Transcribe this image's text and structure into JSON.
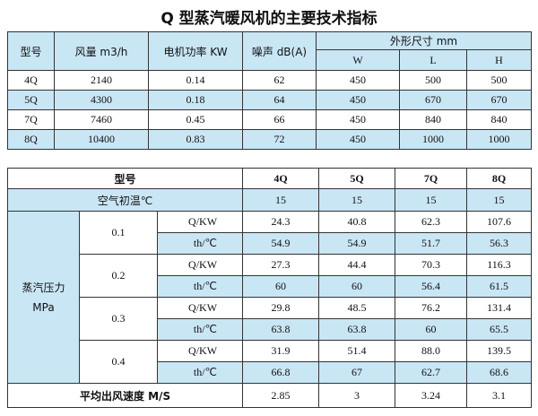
{
  "title": "Q 型蒸汽暖风机的主要技术指标",
  "table1": {
    "header": [
      "型号",
      "风量 m3/h",
      "电机功率 KW",
      "噪声 dB(A)",
      "外形尺寸 mm"
    ],
    "subheader": [
      "W",
      "L",
      "H"
    ],
    "rows": [
      [
        "4Q",
        "2140",
        "0.14",
        "62",
        "450",
        "500",
        "500"
      ],
      [
        "5Q",
        "4300",
        "0.18",
        "64",
        "450",
        "670",
        "670"
      ],
      [
        "7Q",
        "7460",
        "0.45",
        "66",
        "450",
        "840",
        "840"
      ],
      [
        "8Q",
        "10400",
        "0.83",
        "72",
        "450",
        "1000",
        "1000"
      ]
    ]
  },
  "table2": {
    "header": [
      "型号",
      "4Q",
      "5Q",
      "7Q",
      "8Q"
    ],
    "air_temp": {
      "label": "空气初温℃",
      "values": [
        "15",
        "15",
        "15",
        "15"
      ]
    },
    "pressure": {
      "label_lines": [
        "蒸汽压力",
        "MPa"
      ],
      "groups": [
        {
          "pressure": "0.1",
          "rows": [
            {
              "label": "Q/KW",
              "values": [
                "24.3",
                "40.8",
                "62.3",
                "107.6"
              ]
            },
            {
              "label": "th/℃",
              "values": [
                "54.9",
                "54.9",
                "51.7",
                "56.3"
              ]
            }
          ]
        },
        {
          "pressure": "0.2",
          "rows": [
            {
              "label": "Q/KW",
              "values": [
                "27.3",
                "44.4",
                "70.3",
                "116.3"
              ]
            },
            {
              "label": "th/℃",
              "values": [
                "60",
                "60",
                "56.4",
                "61.5"
              ]
            }
          ]
        },
        {
          "pressure": "0.3",
          "rows": [
            {
              "label": "Q/KW",
              "values": [
                "29.8",
                "48.5",
                "76.2",
                "131.4"
              ]
            },
            {
              "label": "th/℃",
              "values": [
                "63.8",
                "63.8",
                "60",
                "65.5"
              ]
            }
          ]
        },
        {
          "pressure": "0.4",
          "rows": [
            {
              "label": "Q/KW",
              "values": [
                "31.9",
                "51.4",
                "88.0",
                "139.5"
              ]
            },
            {
              "label": "th/℃",
              "values": [
                "66.8",
                "67",
                "62.7",
                "68.6"
              ]
            }
          ]
        }
      ]
    },
    "speed": {
      "label": "平均出风速度 M/S",
      "values": [
        "2.85",
        "3",
        "3.24",
        "3.1"
      ]
    }
  }
}
